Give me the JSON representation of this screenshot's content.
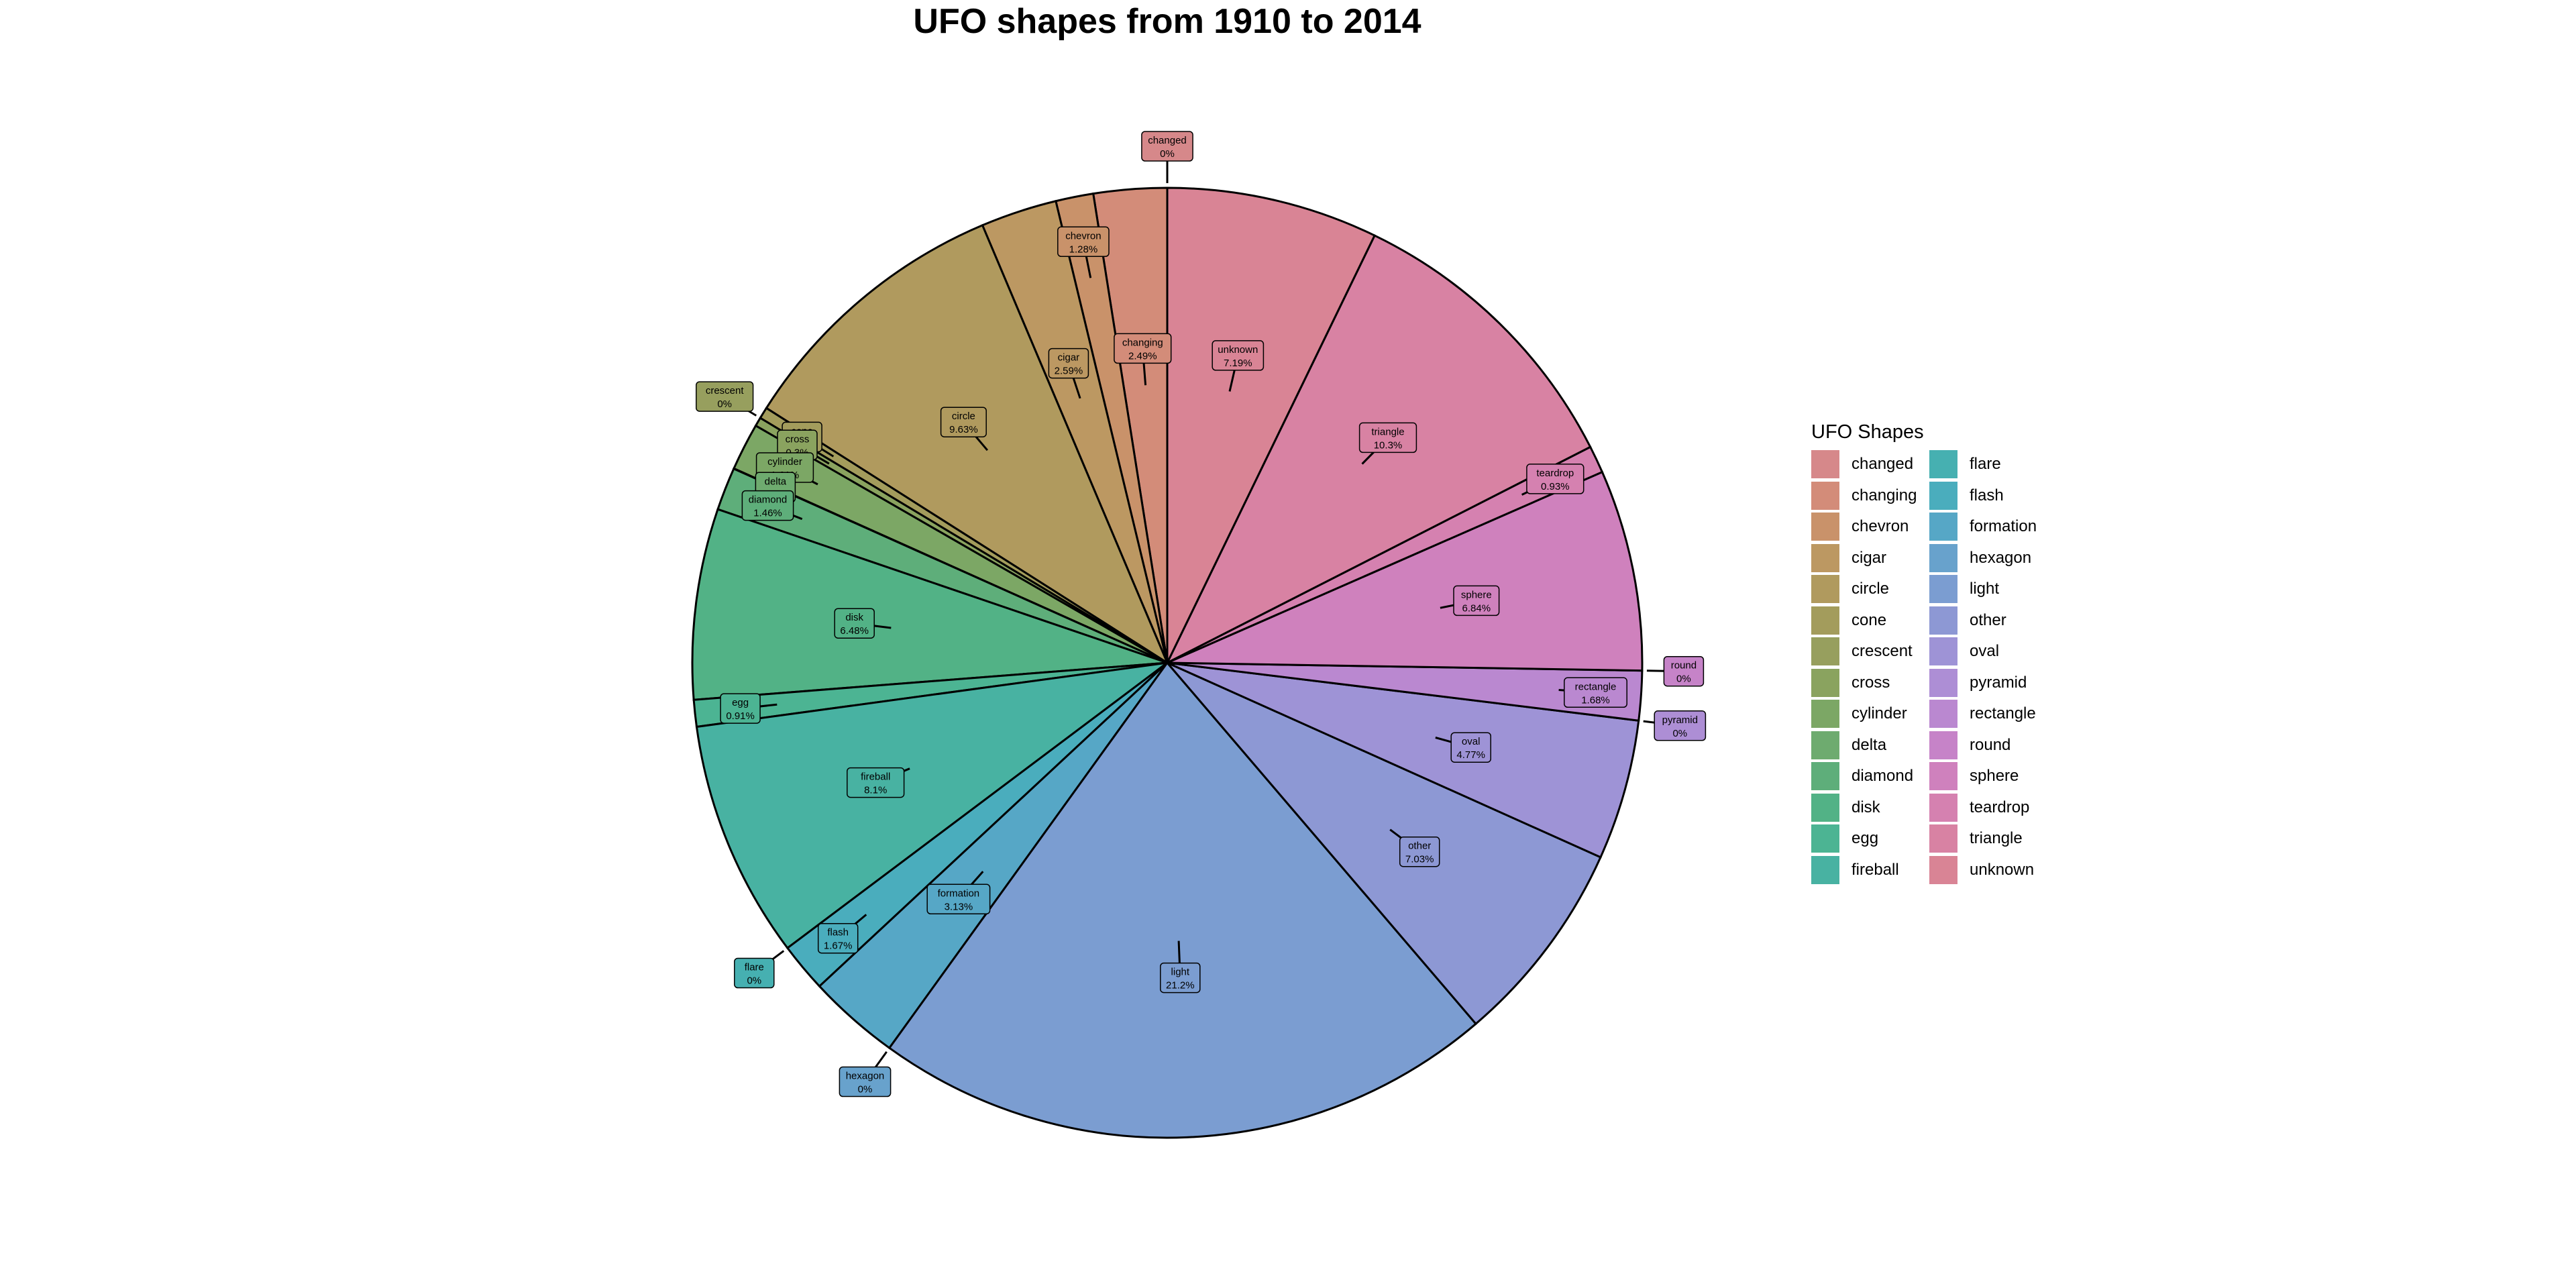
{
  "chart_data": {
    "type": "pie",
    "title": "UFO shapes from 1910 to 2014",
    "legend_title": "UFO Shapes",
    "legend_position": "right",
    "slices": [
      {
        "label": "changed",
        "pct_text": "0%",
        "value": 0.0,
        "color": "#d6888a"
      },
      {
        "label": "changing",
        "pct_text": "2.49%",
        "value": 2.49,
        "color": "#d38c79"
      },
      {
        "label": "chevron",
        "pct_text": "1.28%",
        "value": 1.28,
        "color": "#c9926a"
      },
      {
        "label": "cigar",
        "pct_text": "2.59%",
        "value": 2.59,
        "color": "#bc9862"
      },
      {
        "label": "circle",
        "pct_text": "9.63%",
        "value": 9.63,
        "color": "#b09a5e"
      },
      {
        "label": "cone",
        "pct_text": "0.39%",
        "value": 0.39,
        "color": "#a39c5c"
      },
      {
        "label": "crescent",
        "pct_text": "0%",
        "value": 0.0,
        "color": "#979f5e"
      },
      {
        "label": "cross",
        "pct_text": "0.3%",
        "value": 0.3,
        "color": "#8aa35f"
      },
      {
        "label": "cylinder",
        "pct_text": "1.61%",
        "value": 1.61,
        "color": "#7ca765"
      },
      {
        "label": "delta",
        "pct_text": "0.01%",
        "value": 0.01,
        "color": "#6eab6f"
      },
      {
        "label": "diamond",
        "pct_text": "1.46%",
        "value": 1.46,
        "color": "#5eae7a"
      },
      {
        "label": "disk",
        "pct_text": "6.48%",
        "value": 6.48,
        "color": "#52b286"
      },
      {
        "label": "egg",
        "pct_text": "0.91%",
        "value": 0.91,
        "color": "#4cb493"
      },
      {
        "label": "fireball",
        "pct_text": "8.1%",
        "value": 8.1,
        "color": "#48b2a2"
      },
      {
        "label": "flare",
        "pct_text": "0%",
        "value": 0.0,
        "color": "#46b0b1"
      },
      {
        "label": "flash",
        "pct_text": "1.67%",
        "value": 1.67,
        "color": "#4aadbd"
      },
      {
        "label": "formation",
        "pct_text": "3.13%",
        "value": 3.13,
        "color": "#56a7c6"
      },
      {
        "label": "hexagon",
        "pct_text": "0%",
        "value": 0.0,
        "color": "#68a2cc"
      },
      {
        "label": "light",
        "pct_text": "21.2%",
        "value": 21.2,
        "color": "#7b9dd1"
      },
      {
        "label": "other",
        "pct_text": "7.03%",
        "value": 7.03,
        "color": "#8d98d4"
      },
      {
        "label": "oval",
        "pct_text": "4.77%",
        "value": 4.77,
        "color": "#9e93d6"
      },
      {
        "label": "pyramid",
        "pct_text": "0%",
        "value": 0.0,
        "color": "#ad8ed5"
      },
      {
        "label": "rectangle",
        "pct_text": "1.68%",
        "value": 1.68,
        "color": "#ba88d0"
      },
      {
        "label": "round",
        "pct_text": "0%",
        "value": 0.0,
        "color": "#c683c8"
      },
      {
        "label": "sphere",
        "pct_text": "6.84%",
        "value": 6.84,
        "color": "#cf81bd"
      },
      {
        "label": "teardrop",
        "pct_text": "0.93%",
        "value": 0.93,
        "color": "#d581b0"
      },
      {
        "label": "triangle",
        "pct_text": "10.3%",
        "value": 10.3,
        "color": "#d882a3"
      },
      {
        "label": "unknown",
        "pct_text": "7.19%",
        "value": 7.19,
        "color": "#d98495"
      }
    ]
  }
}
